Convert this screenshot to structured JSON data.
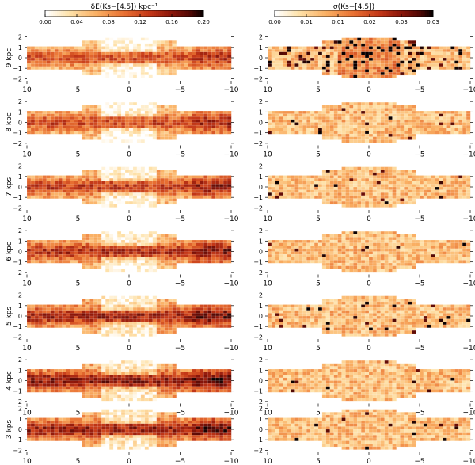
{
  "chart_data": [
    {
      "type": "heatmap",
      "column": "left",
      "colorbar": {
        "title": "δE(Ks−[4.5]) kpc⁻¹",
        "ticks": [
          "0.00",
          "0.04",
          "0.08",
          "0.12",
          "0.16",
          "0.20"
        ],
        "range": [
          0.0,
          0.2
        ]
      },
      "x_range": [
        10,
        -10
      ],
      "y_range": [
        -2.2,
        2.2
      ],
      "xticks": [
        "10",
        "5",
        "0",
        "−5",
        "−10"
      ],
      "yticks": [
        "2",
        "1",
        "0",
        "−1",
        "−2"
      ],
      "grid": true,
      "panels": [
        {
          "label": "9 kpc",
          "intensity": 0.55
        },
        {
          "label": "8 kpc",
          "intensity": 0.58
        },
        {
          "label": "7 kps",
          "intensity": 0.62
        },
        {
          "label": "6 kpc",
          "intensity": 0.66
        },
        {
          "label": "5 kps",
          "intensity": 0.7
        },
        {
          "label": "4 kpc",
          "intensity": 0.75
        },
        {
          "label": "3 kps",
          "intensity": 0.72
        }
      ]
    },
    {
      "type": "heatmap",
      "column": "right",
      "colorbar": {
        "title": "σ(Ks−[4.5])",
        "ticks": [
          "0.00",
          "0.01",
          "0.01",
          "0.02",
          "0.03",
          "0.03"
        ],
        "range": [
          0.0,
          0.035
        ]
      },
      "x_range": [
        10,
        -10
      ],
      "y_range": [
        -2.2,
        2.2
      ],
      "xticks": [
        "10",
        "5",
        "0",
        "−5",
        "−10"
      ],
      "yticks": [
        "2",
        "1",
        "0",
        "−1",
        "−2"
      ],
      "grid": true,
      "panels": [
        {
          "label": "",
          "intensity": 0.75
        },
        {
          "label": "",
          "intensity": 0.35
        },
        {
          "label": "",
          "intensity": 0.35
        },
        {
          "label": "",
          "intensity": 0.35
        },
        {
          "label": "",
          "intensity": 0.35
        },
        {
          "label": "",
          "intensity": 0.35
        },
        {
          "label": "",
          "intensity": 0.4
        }
      ]
    }
  ]
}
